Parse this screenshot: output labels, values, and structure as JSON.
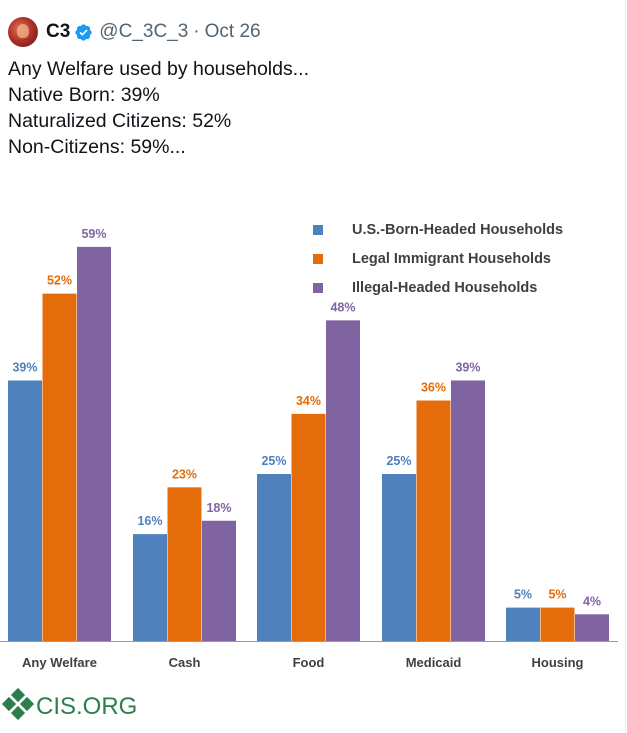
{
  "post": {
    "display_name": "C3",
    "handle": "@C_3C_3",
    "separator": "·",
    "date": "Oct 26",
    "text_lines": [
      "Any Welfare used by households...",
      "",
      "Native Born: 39%",
      "Naturalized Citizens: 52%",
      "Non-Citizens: 59%..."
    ]
  },
  "icons": {
    "avatar": "profile-avatar",
    "verified": "verified-badge-icon",
    "logo": "cis-logo-icon"
  },
  "colors": {
    "us_born": "#4f81bd",
    "legal_immigrant": "#e46c0a",
    "illegal": "#8064a2",
    "verified": "#1d9bf0",
    "logo_green": "#2e7d4f"
  },
  "chart_data": {
    "type": "bar",
    "categories": [
      "Any Welfare",
      "Cash",
      "Food",
      "Medicaid",
      "Housing"
    ],
    "series": [
      {
        "name": "U.S.-Born-Headed Households",
        "values": [
          39,
          16,
          25,
          25,
          5
        ],
        "labels": [
          "39%",
          "16%",
          "25%",
          "25%",
          "5%"
        ],
        "color": "#4f81bd"
      },
      {
        "name": "Legal Immigrant Households",
        "values": [
          52,
          23,
          34,
          36,
          5
        ],
        "labels": [
          "52%",
          "23%",
          "34%",
          "36%",
          "5%"
        ],
        "color": "#e46c0a"
      },
      {
        "name": "Illegal-Headed Households",
        "values": [
          59,
          18,
          48,
          39,
          4
        ],
        "labels": [
          "59%",
          "18%",
          "48%",
          "39%",
          "4%"
        ],
        "color": "#8064a2"
      }
    ],
    "ylim": [
      0,
      65
    ],
    "grid": false,
    "legend": "top-right",
    "source_logo_text": "CIS.ORG"
  }
}
